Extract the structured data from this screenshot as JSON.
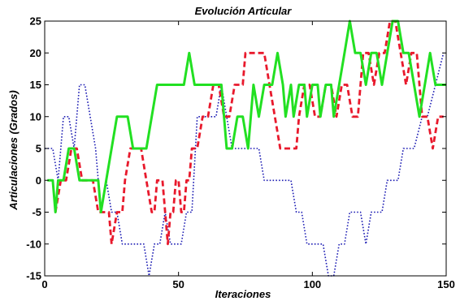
{
  "chart_data": {
    "type": "line",
    "title": "Evolución Articular",
    "xlabel": "Iteraciones",
    "ylabel": "Articulaciones (Grados)",
    "xlim": [
      0,
      150
    ],
    "ylim": [
      -15,
      25
    ],
    "xticks": [
      0,
      50,
      100,
      150
    ],
    "yticks": [
      -15,
      -10,
      -5,
      0,
      5,
      10,
      15,
      20,
      25
    ],
    "xtick_labels": [
      "0",
      "50",
      "100",
      "150"
    ],
    "ytick_labels": [
      "-15",
      "-10",
      "-5",
      "0",
      "5",
      "10",
      "15",
      "20",
      "25"
    ],
    "grid": false,
    "legend": "none",
    "series": [
      {
        "color": "#1b1bb3",
        "style": "dotted",
        "points": [
          [
            0,
            5
          ],
          [
            3,
            5
          ],
          [
            5,
            0
          ],
          [
            7,
            10
          ],
          [
            9,
            10
          ],
          [
            11,
            5
          ],
          [
            13,
            15
          ],
          [
            15,
            15
          ],
          [
            17,
            10
          ],
          [
            19,
            5
          ],
          [
            21,
            -5
          ],
          [
            23,
            0
          ],
          [
            25,
            -5
          ],
          [
            27,
            -5
          ],
          [
            29,
            -10
          ],
          [
            33,
            -10
          ],
          [
            37,
            -10
          ],
          [
            39,
            -15
          ],
          [
            41,
            -10
          ],
          [
            43,
            -10
          ],
          [
            45,
            -5
          ],
          [
            47,
            -10
          ],
          [
            51,
            -10
          ],
          [
            53,
            -5
          ],
          [
            55,
            -5
          ],
          [
            57,
            10
          ],
          [
            61,
            10
          ],
          [
            64,
            10
          ],
          [
            66,
            15
          ],
          [
            68,
            10
          ],
          [
            70,
            5
          ],
          [
            72,
            5
          ],
          [
            74,
            5
          ],
          [
            78,
            5
          ],
          [
            80,
            5
          ],
          [
            82,
            0
          ],
          [
            86,
            0
          ],
          [
            92,
            0
          ],
          [
            94,
            -5
          ],
          [
            96,
            -5
          ],
          [
            98,
            -10
          ],
          [
            102,
            -10
          ],
          [
            104,
            -10
          ],
          [
            106,
            -15
          ],
          [
            108,
            -15
          ],
          [
            110,
            -10
          ],
          [
            112,
            -10
          ],
          [
            114,
            -5
          ],
          [
            118,
            -5
          ],
          [
            120,
            -10
          ],
          [
            122,
            -5
          ],
          [
            126,
            -5
          ],
          [
            128,
            0
          ],
          [
            130,
            0
          ],
          [
            132,
            0
          ],
          [
            134,
            5
          ],
          [
            138,
            5
          ],
          [
            141,
            10
          ],
          [
            143,
            10
          ],
          [
            146,
            15
          ],
          [
            149,
            20
          ]
        ]
      },
      {
        "color": "#e8192c",
        "style": "dashed",
        "points": [
          [
            4,
            -5
          ],
          [
            6,
            0
          ],
          [
            8,
            0
          ],
          [
            10,
            5
          ],
          [
            12,
            5
          ],
          [
            14,
            0
          ],
          [
            16,
            0
          ],
          [
            18,
            0
          ],
          [
            20,
            -5
          ],
          [
            22,
            -5
          ],
          [
            24,
            -5
          ],
          [
            25,
            -10
          ],
          [
            27,
            -5
          ],
          [
            29,
            -5
          ],
          [
            30,
            0
          ],
          [
            32,
            5
          ],
          [
            34,
            5
          ],
          [
            36,
            5
          ],
          [
            38,
            0
          ],
          [
            40,
            -5
          ],
          [
            41,
            -5
          ],
          [
            42,
            0
          ],
          [
            44,
            0
          ],
          [
            45,
            -5
          ],
          [
            46,
            -10
          ],
          [
            47,
            -5
          ],
          [
            48,
            -5
          ],
          [
            49,
            0
          ],
          [
            50,
            0
          ],
          [
            51,
            -5
          ],
          [
            52,
            -5
          ],
          [
            53,
            0
          ],
          [
            54,
            0
          ],
          [
            55,
            5
          ],
          [
            57,
            5
          ],
          [
            59,
            10
          ],
          [
            61,
            10
          ],
          [
            63,
            15
          ],
          [
            65,
            15
          ],
          [
            67,
            10
          ],
          [
            69,
            10
          ],
          [
            71,
            15
          ],
          [
            74,
            15
          ],
          [
            75,
            20
          ],
          [
            80,
            20
          ],
          [
            82,
            20
          ],
          [
            84,
            15
          ],
          [
            86,
            10
          ],
          [
            88,
            5
          ],
          [
            90,
            5
          ],
          [
            94,
            5
          ],
          [
            95,
            10
          ],
          [
            97,
            15
          ],
          [
            99,
            15
          ],
          [
            101,
            10
          ],
          [
            103,
            10
          ],
          [
            105,
            15
          ],
          [
            107,
            15
          ],
          [
            109,
            10
          ],
          [
            111,
            15
          ],
          [
            113,
            15
          ],
          [
            115,
            10
          ],
          [
            117,
            10
          ],
          [
            119,
            20
          ],
          [
            121,
            20
          ],
          [
            123,
            15
          ],
          [
            125,
            20
          ],
          [
            127,
            20
          ],
          [
            129,
            25
          ],
          [
            131,
            25
          ],
          [
            133,
            20
          ],
          [
            135,
            15
          ],
          [
            137,
            20
          ],
          [
            139,
            20
          ],
          [
            141,
            10
          ],
          [
            143,
            10
          ],
          [
            145,
            5
          ],
          [
            147,
            10
          ],
          [
            149,
            10
          ]
        ]
      },
      {
        "color": "#22e022",
        "style": "solid",
        "points": [
          [
            1,
            0
          ],
          [
            3,
            0
          ],
          [
            4,
            -5
          ],
          [
            5,
            0
          ],
          [
            7,
            0
          ],
          [
            9,
            5
          ],
          [
            11,
            5
          ],
          [
            13,
            0
          ],
          [
            18,
            0
          ],
          [
            20,
            0
          ],
          [
            21,
            -5
          ],
          [
            23,
            0
          ],
          [
            25,
            5
          ],
          [
            27,
            10
          ],
          [
            29,
            10
          ],
          [
            31,
            10
          ],
          [
            33,
            5
          ],
          [
            36,
            5
          ],
          [
            38,
            5
          ],
          [
            40,
            10
          ],
          [
            42,
            15
          ],
          [
            44,
            15
          ],
          [
            46,
            15
          ],
          [
            48,
            15
          ],
          [
            50,
            15
          ],
          [
            52,
            15
          ],
          [
            54,
            20
          ],
          [
            56,
            15
          ],
          [
            58,
            15
          ],
          [
            62,
            15
          ],
          [
            66,
            15
          ],
          [
            68,
            5
          ],
          [
            70,
            5
          ],
          [
            72,
            10
          ],
          [
            74,
            10
          ],
          [
            76,
            5
          ],
          [
            78,
            15
          ],
          [
            80,
            10
          ],
          [
            82,
            15
          ],
          [
            85,
            15
          ],
          [
            87,
            20
          ],
          [
            89,
            15
          ],
          [
            90,
            10
          ],
          [
            92,
            15
          ],
          [
            93,
            10
          ],
          [
            95,
            15
          ],
          [
            97,
            15
          ],
          [
            98,
            10
          ],
          [
            100,
            15
          ],
          [
            102,
            15
          ],
          [
            103,
            10
          ],
          [
            105,
            15
          ],
          [
            107,
            15
          ],
          [
            108,
            10
          ],
          [
            110,
            15
          ],
          [
            112,
            20
          ],
          [
            114,
            25
          ],
          [
            116,
            20
          ],
          [
            118,
            20
          ],
          [
            120,
            15
          ],
          [
            122,
            20
          ],
          [
            124,
            20
          ],
          [
            126,
            15
          ],
          [
            128,
            20
          ],
          [
            130,
            25
          ],
          [
            132,
            25
          ],
          [
            134,
            20
          ],
          [
            136,
            20
          ],
          [
            138,
            15
          ],
          [
            140,
            10
          ],
          [
            142,
            15
          ],
          [
            144,
            20
          ],
          [
            146,
            15
          ],
          [
            150,
            15
          ]
        ]
      }
    ]
  }
}
